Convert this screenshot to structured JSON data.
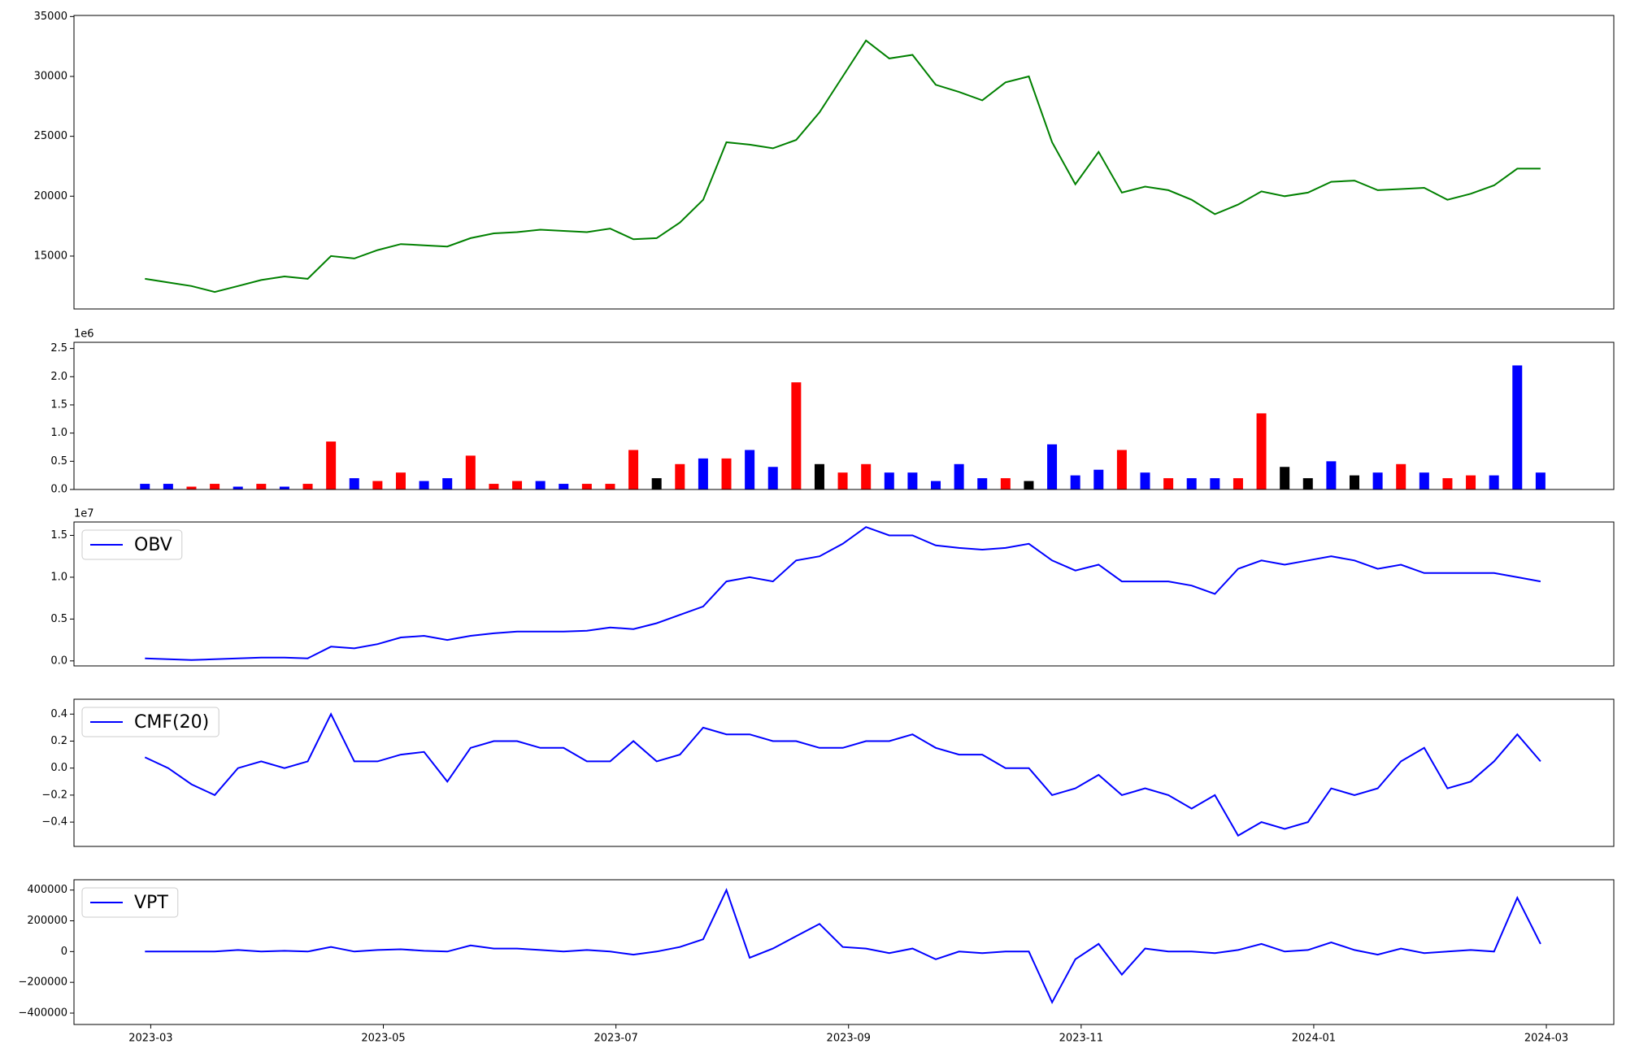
{
  "chart_data": [
    {
      "type": "line",
      "x": [
        2.95,
        3.15,
        3.35,
        3.55,
        3.75,
        3.95,
        4.15,
        4.35,
        4.55,
        4.75,
        4.95,
        5.15,
        5.35,
        5.55,
        5.75,
        5.95,
        6.15,
        6.35,
        6.55,
        6.75,
        6.95,
        7.15,
        7.35,
        7.55,
        7.75,
        7.95,
        8.15,
        8.35,
        8.55,
        8.75,
        8.95,
        9.15,
        9.35,
        9.55,
        9.75,
        9.95,
        10.15,
        10.35,
        10.55,
        10.75,
        10.95,
        11.15,
        11.35,
        11.55,
        11.75,
        11.95,
        12.15,
        12.35,
        12.55,
        12.75,
        12.95,
        13.15,
        13.35,
        13.55,
        13.75,
        13.95,
        14.15,
        14.35,
        14.55,
        14.75,
        14.95
      ],
      "xlim": [
        2.34,
        15.58
      ],
      "series": [
        {
          "color": "#008000",
          "values": [
            13100,
            12800,
            12500,
            12000,
            12500,
            13000,
            13300,
            13100,
            15000,
            14800,
            15500,
            16000,
            15900,
            15800,
            16500,
            16900,
            17000,
            17200,
            17100,
            17000,
            17300,
            16400,
            16500,
            17800,
            19700,
            24500,
            24300,
            24000,
            24700,
            27000,
            30000,
            33000,
            31500,
            31800,
            29300,
            28700,
            28000,
            29500,
            30000,
            24500,
            21000,
            23700,
            20300,
            20800,
            20500,
            19700,
            18500,
            19300,
            20400,
            20000,
            20300,
            21200,
            21300,
            20500,
            20600,
            20700,
            19700,
            20200,
            20900,
            22300,
            22300
          ]
        }
      ],
      "ylim": [
        10584,
        35090
      ],
      "yticks": [
        15000,
        20000,
        25000,
        30000,
        35000
      ]
    },
    {
      "type": "bar",
      "x": [
        2.95,
        3.15,
        3.35,
        3.55,
        3.75,
        3.95,
        4.15,
        4.35,
        4.55,
        4.75,
        4.95,
        5.15,
        5.35,
        5.55,
        5.75,
        5.95,
        6.15,
        6.35,
        6.55,
        6.75,
        6.95,
        7.15,
        7.35,
        7.55,
        7.75,
        7.95,
        8.15,
        8.35,
        8.55,
        8.75,
        8.95,
        9.15,
        9.35,
        9.55,
        9.75,
        9.95,
        10.15,
        10.35,
        10.55,
        10.75,
        10.95,
        11.15,
        11.35,
        11.55,
        11.75,
        11.95,
        12.15,
        12.35,
        12.55,
        12.75,
        12.95,
        13.15,
        13.35,
        13.55,
        13.75,
        13.95,
        14.15,
        14.35,
        14.55,
        14.75,
        14.95
      ],
      "xlim": [
        2.34,
        15.58
      ],
      "values": [
        0.1,
        0.1,
        0.05,
        0.1,
        0.05,
        0.1,
        0.05,
        0.1,
        0.85,
        0.2,
        0.15,
        0.3,
        0.15,
        0.2,
        0.6,
        0.1,
        0.15,
        0.15,
        0.1,
        0.1,
        0.1,
        0.7,
        0.2,
        0.45,
        0.55,
        0.55,
        0.7,
        0.4,
        1.9,
        0.45,
        0.3,
        0.45,
        0.3,
        0.3,
        0.15,
        0.45,
        0.2,
        0.2,
        0.15,
        0.8,
        0.25,
        0.35,
        0.7,
        0.3,
        0.2,
        0.2,
        0.2,
        0.2,
        1.35,
        0.4,
        0.2,
        0.5,
        0.25,
        0.3,
        0.45,
        0.3,
        0.2,
        0.25,
        0.25,
        2.2,
        0.3
      ],
      "colors": [
        "#0000ff",
        "#0000ff",
        "#ff0000",
        "#ff0000",
        "#0000ff",
        "#ff0000",
        "#0000ff",
        "#ff0000",
        "#ff0000",
        "#0000ff",
        "#ff0000",
        "#ff0000",
        "#0000ff",
        "#0000ff",
        "#ff0000",
        "#ff0000",
        "#ff0000",
        "#0000ff",
        "#0000ff",
        "#ff0000",
        "#ff0000",
        "#ff0000",
        "#000000",
        "#ff0000",
        "#0000ff",
        "#ff0000",
        "#0000ff",
        "#0000ff",
        "#ff0000",
        "#000000",
        "#ff0000",
        "#ff0000",
        "#0000ff",
        "#0000ff",
        "#0000ff",
        "#0000ff",
        "#0000ff",
        "#ff0000",
        "#000000",
        "#0000ff",
        "#0000ff",
        "#0000ff",
        "#ff0000",
        "#0000ff",
        "#ff0000",
        "#0000ff",
        "#0000ff",
        "#ff0000",
        "#ff0000",
        "#000000",
        "#000000",
        "#0000ff",
        "#000000",
        "#0000ff",
        "#ff0000",
        "#0000ff",
        "#ff0000",
        "#ff0000",
        "#0000ff",
        "#0000ff",
        "#0000ff"
      ],
      "ylim": [
        0,
        2.61
      ],
      "yticks": [
        {
          "value": 0,
          "label": "0.0"
        },
        0.5,
        {
          "value": 1,
          "label": "1.0"
        },
        1.5,
        {
          "value": 2,
          "label": "2.0"
        },
        2.5
      ],
      "offset_text": "1e6"
    },
    {
      "type": "line",
      "x": [
        2.95,
        3.15,
        3.35,
        3.55,
        3.75,
        3.95,
        4.15,
        4.35,
        4.55,
        4.75,
        4.95,
        5.15,
        5.35,
        5.55,
        5.75,
        5.95,
        6.15,
        6.35,
        6.55,
        6.75,
        6.95,
        7.15,
        7.35,
        7.55,
        7.75,
        7.95,
        8.15,
        8.35,
        8.55,
        8.75,
        8.95,
        9.15,
        9.35,
        9.55,
        9.75,
        9.95,
        10.15,
        10.35,
        10.55,
        10.75,
        10.95,
        11.15,
        11.35,
        11.55,
        11.75,
        11.95,
        12.15,
        12.35,
        12.55,
        12.75,
        12.95,
        13.15,
        13.35,
        13.55,
        13.75,
        13.95,
        14.15,
        14.35,
        14.55,
        14.75,
        14.95
      ],
      "xlim": [
        2.34,
        15.58
      ],
      "series": [
        {
          "name": "OBV",
          "color": "#0000ff",
          "values": [
            0.03,
            0.02,
            0.01,
            0.02,
            0.03,
            0.04,
            0.04,
            0.03,
            0.17,
            0.15,
            0.2,
            0.28,
            0.3,
            0.25,
            0.3,
            0.33,
            0.35,
            0.35,
            0.35,
            0.36,
            0.4,
            0.38,
            0.45,
            0.55,
            0.65,
            0.95,
            1.0,
            0.95,
            1.2,
            1.25,
            1.4,
            1.6,
            1.5,
            1.5,
            1.38,
            1.35,
            1.33,
            1.35,
            1.4,
            1.2,
            1.08,
            1.15,
            0.95,
            0.95,
            0.95,
            0.9,
            0.8,
            1.1,
            1.2,
            1.15,
            1.2,
            1.25,
            1.2,
            1.1,
            1.15,
            1.05,
            1.05,
            1.05,
            1.05,
            1.0,
            0.95
          ]
        }
      ],
      "ylim": [
        -0.06,
        1.66
      ],
      "yticks": [
        {
          "value": 0,
          "label": "0.0"
        },
        0.5,
        {
          "value": 1,
          "label": "1.0"
        },
        1.5
      ],
      "offset_text": "1e7",
      "legend": "upper left"
    },
    {
      "type": "line",
      "x": [
        2.95,
        3.15,
        3.35,
        3.55,
        3.75,
        3.95,
        4.15,
        4.35,
        4.55,
        4.75,
        4.95,
        5.15,
        5.35,
        5.55,
        5.75,
        5.95,
        6.15,
        6.35,
        6.55,
        6.75,
        6.95,
        7.15,
        7.35,
        7.55,
        7.75,
        7.95,
        8.15,
        8.35,
        8.55,
        8.75,
        8.95,
        9.15,
        9.35,
        9.55,
        9.75,
        9.95,
        10.15,
        10.35,
        10.55,
        10.75,
        10.95,
        11.15,
        11.35,
        11.55,
        11.75,
        11.95,
        12.15,
        12.35,
        12.55,
        12.75,
        12.95,
        13.15,
        13.35,
        13.55,
        13.75,
        13.95,
        14.15,
        14.35,
        14.55,
        14.75,
        14.95
      ],
      "xlim": [
        2.34,
        15.58
      ],
      "series": [
        {
          "name": "CMF(20)",
          "color": "#0000ff",
          "values": [
            0.08,
            0.0,
            -0.12,
            -0.2,
            0.0,
            0.05,
            0.0,
            0.05,
            0.4,
            0.05,
            0.05,
            0.1,
            0.12,
            -0.1,
            0.15,
            0.2,
            0.2,
            0.15,
            0.15,
            0.05,
            0.05,
            0.2,
            0.05,
            0.1,
            0.3,
            0.25,
            0.25,
            0.2,
            0.2,
            0.15,
            0.15,
            0.2,
            0.2,
            0.25,
            0.15,
            0.1,
            0.1,
            0.0,
            0.0,
            -0.2,
            -0.15,
            -0.05,
            -0.2,
            -0.15,
            -0.2,
            -0.3,
            -0.2,
            -0.5,
            -0.4,
            -0.45,
            -0.4,
            -0.15,
            -0.2,
            -0.15,
            0.05,
            0.15,
            -0.15,
            -0.1,
            0.05,
            0.25,
            0.05
          ]
        }
      ],
      "ylim": [
        -0.58,
        0.51
      ],
      "yticks": [
        {
          "value": -0.4,
          "label": "−0.4"
        },
        {
          "value": -0.2,
          "label": "−0.2"
        },
        {
          "value": 0,
          "label": "0.0"
        },
        0.2,
        0.4
      ],
      "legend": "upper left"
    },
    {
      "type": "line",
      "x": [
        2.95,
        3.15,
        3.35,
        3.55,
        3.75,
        3.95,
        4.15,
        4.35,
        4.55,
        4.75,
        4.95,
        5.15,
        5.35,
        5.55,
        5.75,
        5.95,
        6.15,
        6.35,
        6.55,
        6.75,
        6.95,
        7.15,
        7.35,
        7.55,
        7.75,
        7.95,
        8.15,
        8.35,
        8.55,
        8.75,
        8.95,
        9.15,
        9.35,
        9.55,
        9.75,
        9.95,
        10.15,
        10.35,
        10.55,
        10.75,
        10.95,
        11.15,
        11.35,
        11.55,
        11.75,
        11.95,
        12.15,
        12.35,
        12.55,
        12.75,
        12.95,
        13.15,
        13.35,
        13.55,
        13.75,
        13.95,
        14.15,
        14.35,
        14.55,
        14.75,
        14.95
      ],
      "xlim": [
        2.34,
        15.58
      ],
      "xticks": [
        {
          "value": 3,
          "label": "2023-03"
        },
        {
          "value": 5,
          "label": "2023-05"
        },
        {
          "value": 7,
          "label": "2023-07"
        },
        {
          "value": 9,
          "label": "2023-09"
        },
        {
          "value": 11,
          "label": "2023-11"
        },
        {
          "value": 13,
          "label": "2024-01"
        },
        {
          "value": 15,
          "label": "2024-03"
        }
      ],
      "series": [
        {
          "name": "VPT",
          "color": "#0000ff",
          "values": [
            0,
            0,
            0,
            0,
            10000,
            0,
            5000,
            0,
            30000,
            0,
            10000,
            15000,
            5000,
            0,
            40000,
            20000,
            20000,
            10000,
            0,
            10000,
            0,
            -20000,
            0,
            30000,
            80000,
            400000,
            -40000,
            20000,
            100000,
            180000,
            30000,
            20000,
            -10000,
            20000,
            -50000,
            0,
            -10000,
            0,
            0,
            -330000,
            -50000,
            50000,
            -150000,
            20000,
            0,
            0,
            -10000,
            10000,
            50000,
            0,
            10000,
            60000,
            10000,
            -20000,
            20000,
            -10000,
            0,
            10000,
            0,
            350000,
            50000
          ]
        }
      ],
      "ylim": [
        -474000,
        467000
      ],
      "yticks": [
        {
          "value": -400000,
          "label": "−400000"
        },
        {
          "value": -200000,
          "label": "−200000"
        },
        0,
        200000,
        400000
      ],
      "legend": "upper left"
    }
  ]
}
